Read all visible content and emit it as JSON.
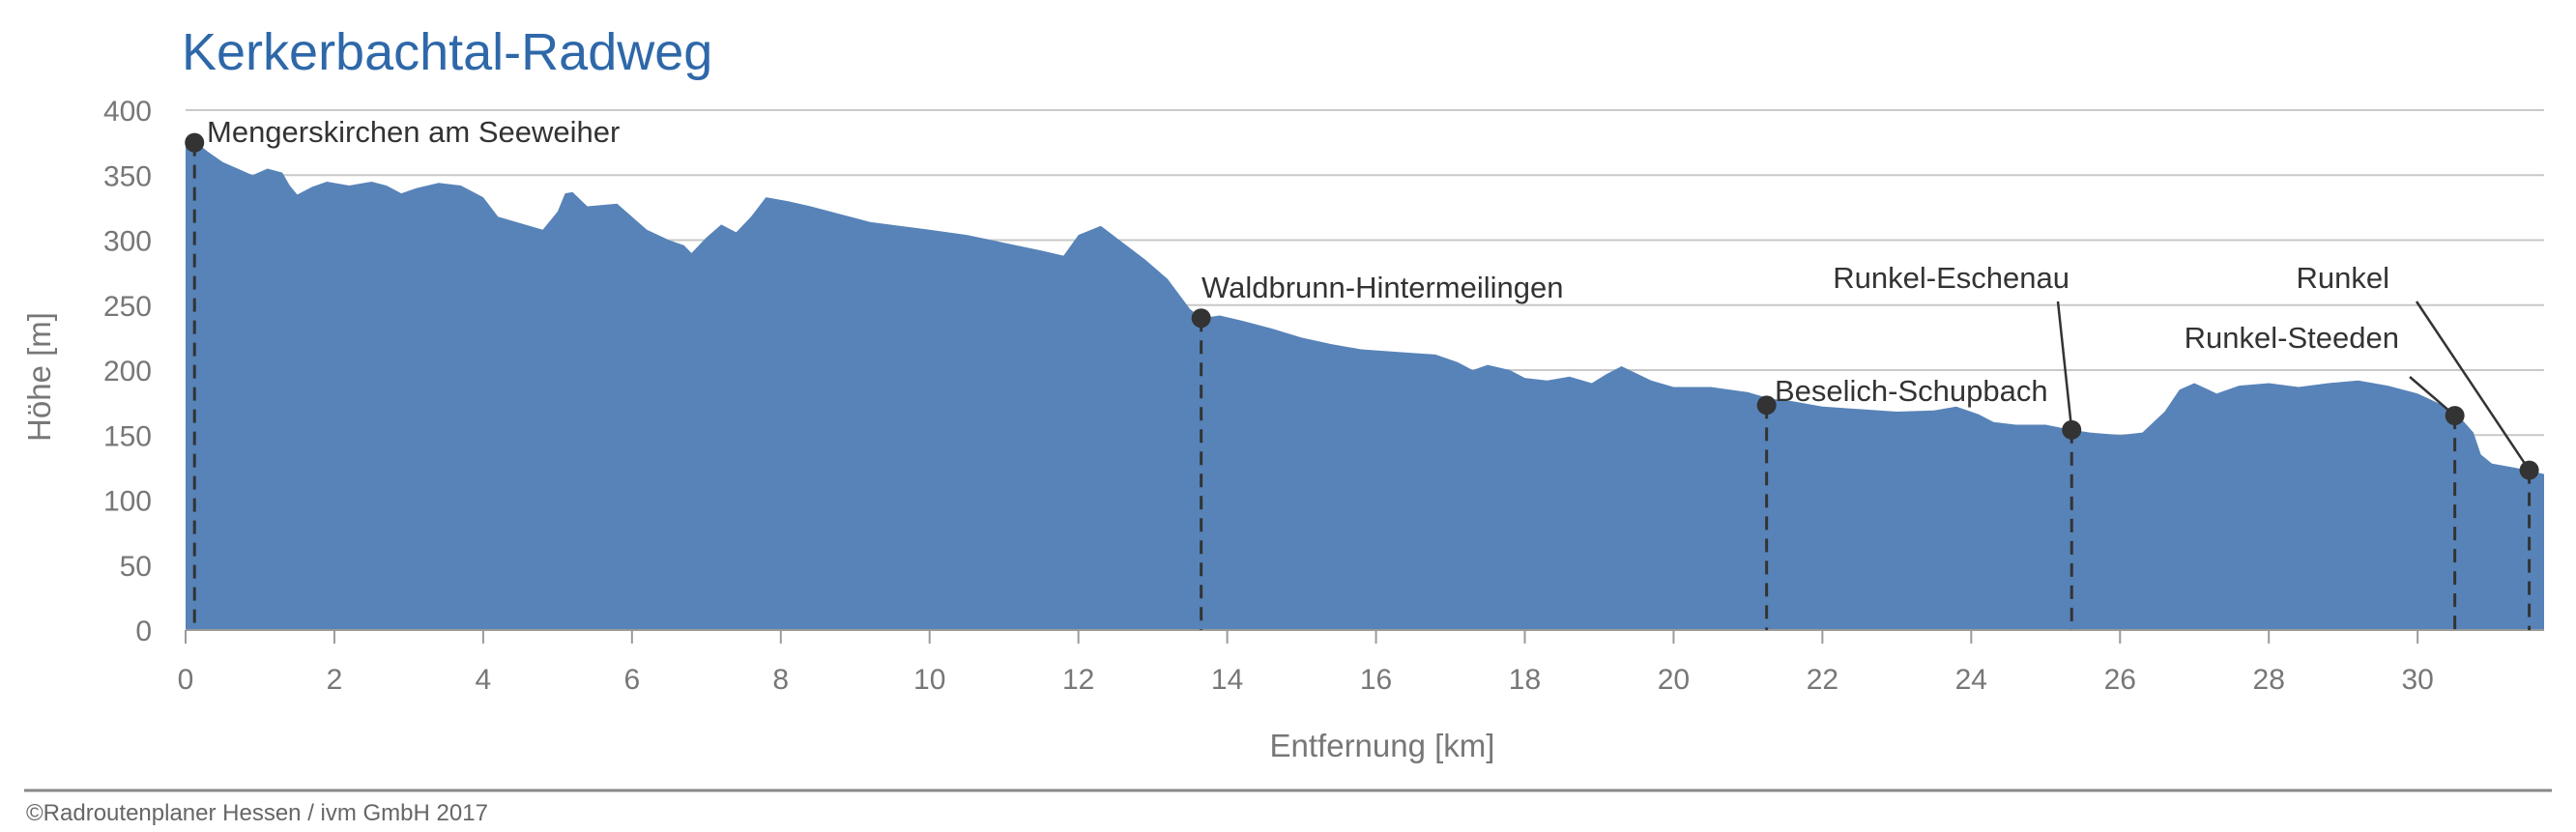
{
  "chart_data": {
    "type": "area",
    "title": "Kerkerbachtal-Radweg",
    "xlabel": "Entfernung [km]",
    "ylabel": "Höhe [m]",
    "xlim": [
      0,
      31.7
    ],
    "ylim": [
      0,
      400
    ],
    "xticks": [
      0,
      2,
      4,
      6,
      8,
      10,
      12,
      14,
      16,
      18,
      20,
      22,
      24,
      26,
      28,
      30
    ],
    "yticks": [
      0,
      50,
      100,
      150,
      200,
      250,
      300,
      350,
      400
    ],
    "grid": true,
    "fill_color": "#5783b8",
    "profile": [
      [
        0.0,
        375
      ],
      [
        0.1,
        377
      ],
      [
        0.3,
        368
      ],
      [
        0.5,
        360
      ],
      [
        0.7,
        355
      ],
      [
        0.9,
        350
      ],
      [
        1.1,
        355
      ],
      [
        1.3,
        352
      ],
      [
        1.4,
        342
      ],
      [
        1.5,
        335
      ],
      [
        1.7,
        341
      ],
      [
        1.9,
        345
      ],
      [
        2.2,
        342
      ],
      [
        2.5,
        345
      ],
      [
        2.7,
        342
      ],
      [
        2.9,
        336
      ],
      [
        3.1,
        340
      ],
      [
        3.4,
        344
      ],
      [
        3.7,
        342
      ],
      [
        4.0,
        333
      ],
      [
        4.2,
        318
      ],
      [
        4.5,
        313
      ],
      [
        4.8,
        308
      ],
      [
        5.0,
        322
      ],
      [
        5.1,
        336
      ],
      [
        5.2,
        337
      ],
      [
        5.4,
        326
      ],
      [
        5.8,
        328
      ],
      [
        6.0,
        318
      ],
      [
        6.2,
        308
      ],
      [
        6.5,
        300
      ],
      [
        6.7,
        296
      ],
      [
        6.8,
        290
      ],
      [
        7.0,
        302
      ],
      [
        7.2,
        312
      ],
      [
        7.4,
        306
      ],
      [
        7.6,
        318
      ],
      [
        7.8,
        333
      ],
      [
        8.1,
        330
      ],
      [
        8.4,
        326
      ],
      [
        8.8,
        320
      ],
      [
        9.2,
        314
      ],
      [
        9.6,
        311
      ],
      [
        10.0,
        308
      ],
      [
        10.5,
        304
      ],
      [
        11.0,
        298
      ],
      [
        11.5,
        292
      ],
      [
        11.8,
        288
      ],
      [
        12.0,
        304
      ],
      [
        12.3,
        311
      ],
      [
        12.6,
        298
      ],
      [
        12.9,
        285
      ],
      [
        13.2,
        270
      ],
      [
        13.5,
        247
      ],
      [
        13.65,
        240
      ],
      [
        13.9,
        242
      ],
      [
        14.2,
        238
      ],
      [
        14.6,
        232
      ],
      [
        15.0,
        225
      ],
      [
        15.4,
        220
      ],
      [
        15.8,
        216
      ],
      [
        16.3,
        214
      ],
      [
        16.8,
        212
      ],
      [
        17.1,
        206
      ],
      [
        17.3,
        200
      ],
      [
        17.5,
        204
      ],
      [
        17.8,
        200
      ],
      [
        18.0,
        194
      ],
      [
        18.3,
        192
      ],
      [
        18.6,
        195
      ],
      [
        18.9,
        190
      ],
      [
        19.1,
        197
      ],
      [
        19.3,
        203
      ],
      [
        19.7,
        192
      ],
      [
        20.0,
        187
      ],
      [
        20.5,
        187
      ],
      [
        21.0,
        183
      ],
      [
        21.3,
        178
      ],
      [
        21.6,
        176
      ],
      [
        22.0,
        172
      ],
      [
        22.5,
        170
      ],
      [
        23.0,
        168
      ],
      [
        23.5,
        169
      ],
      [
        23.8,
        172
      ],
      [
        24.1,
        166
      ],
      [
        24.3,
        160
      ],
      [
        24.6,
        158
      ],
      [
        25.0,
        158
      ],
      [
        25.35,
        154
      ],
      [
        25.6,
        152
      ],
      [
        26.0,
        150
      ],
      [
        26.3,
        152
      ],
      [
        26.6,
        168
      ],
      [
        26.8,
        185
      ],
      [
        27.0,
        190
      ],
      [
        27.3,
        182
      ],
      [
        27.6,
        188
      ],
      [
        28.0,
        190
      ],
      [
        28.4,
        187
      ],
      [
        28.8,
        190
      ],
      [
        29.2,
        192
      ],
      [
        29.6,
        188
      ],
      [
        30.0,
        182
      ],
      [
        30.3,
        174
      ],
      [
        30.55,
        165
      ],
      [
        30.75,
        152
      ],
      [
        30.85,
        135
      ],
      [
        31.0,
        128
      ],
      [
        31.3,
        125
      ],
      [
        31.55,
        122
      ],
      [
        31.7,
        120
      ]
    ],
    "waypoints": [
      {
        "name": "Mengerskirchen am Seeweiher",
        "km": 0.12,
        "elev": 375,
        "label_anchor": "start"
      },
      {
        "name": "Waldbrunn-Hintermeilingen",
        "km": 13.65,
        "elev": 240,
        "label_anchor": "start"
      },
      {
        "name": "Beselich-Schupbach",
        "km": 21.25,
        "elev": 173,
        "label_anchor": "start"
      },
      {
        "name": "Runkel-Eschenau",
        "km": 25.35,
        "elev": 154,
        "label_anchor": "end"
      },
      {
        "name": "Runkel-Steeden",
        "km": 30.5,
        "elev": 165,
        "label_anchor": "end"
      },
      {
        "name": "Runkel",
        "km": 31.5,
        "elev": 123,
        "label_anchor": "end"
      }
    ]
  },
  "copyright": "©Radroutenplaner Hessen / ivm GmbH 2017"
}
